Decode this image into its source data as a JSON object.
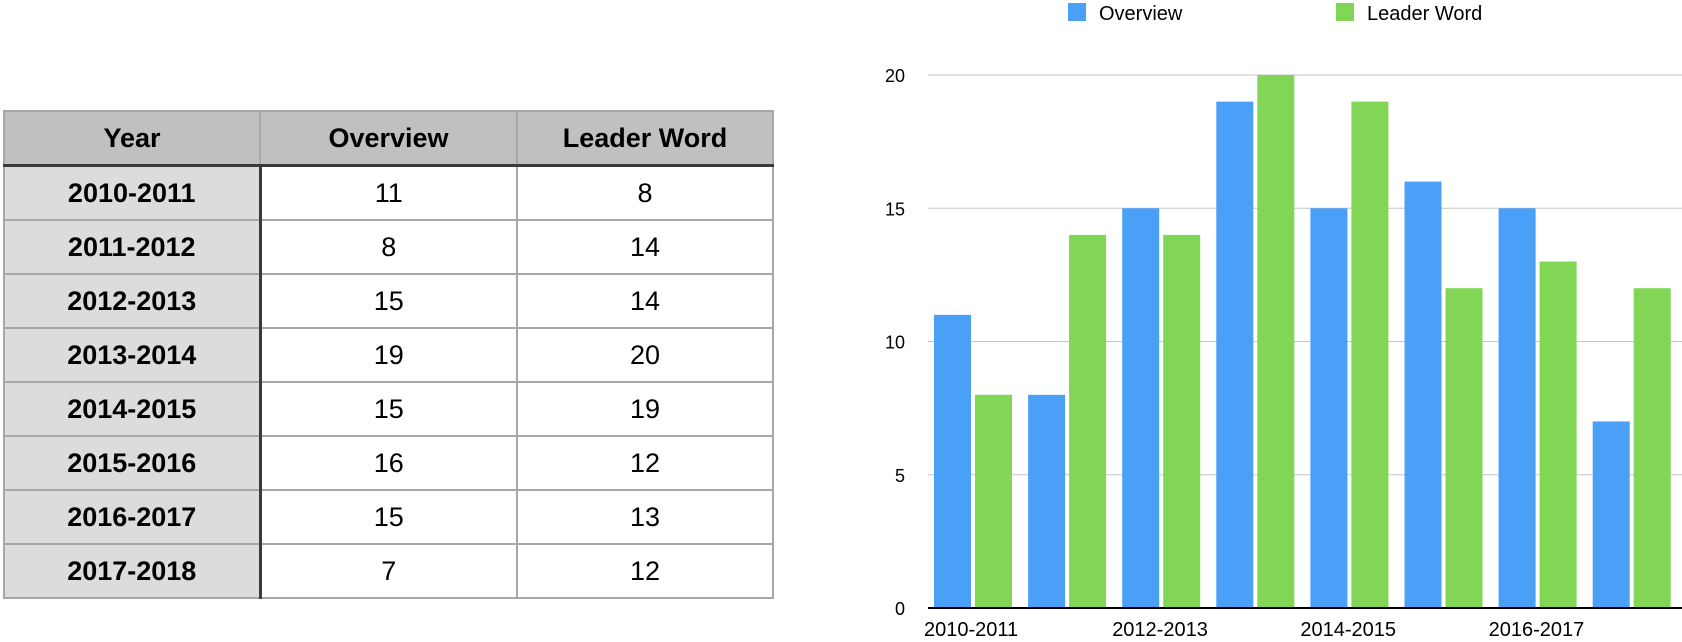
{
  "table": {
    "headers": [
      "Year",
      "Overview",
      "Leader Word"
    ],
    "rows": [
      [
        "2010-2011",
        "11",
        "8"
      ],
      [
        "2011-2012",
        "8",
        "14"
      ],
      [
        "2012-2013",
        "15",
        "14"
      ],
      [
        "2013-2014",
        "19",
        "20"
      ],
      [
        "2014-2015",
        "15",
        "19"
      ],
      [
        "2015-2016",
        "16",
        "12"
      ],
      [
        "2016-2017",
        "15",
        "13"
      ],
      [
        "2017-2018",
        "7",
        "12"
      ]
    ]
  },
  "chart_data": {
    "type": "bar",
    "categories": [
      "2010-2011",
      "2011-2012",
      "2012-2013",
      "2013-2014",
      "2014-2015",
      "2015-2016",
      "2016-2017",
      "2017-2018"
    ],
    "x_tick_labels": [
      "2010-2011",
      "",
      "2012-2013",
      "",
      "2014-2015",
      "",
      "2016-2017",
      ""
    ],
    "series": [
      {
        "name": "Overview",
        "values": [
          11,
          8,
          15,
          19,
          15,
          16,
          15,
          7
        ],
        "color": "#4aa0f7"
      },
      {
        "name": "Leader Word",
        "values": [
          8,
          14,
          14,
          20,
          19,
          12,
          13,
          12
        ],
        "color": "#82d656"
      }
    ],
    "ylim": [
      0,
      20
    ],
    "yticks": [
      0,
      5,
      10,
      15,
      20
    ],
    "grid": true,
    "legend_position": "top",
    "title": "",
    "xlabel": "",
    "ylabel": ""
  }
}
